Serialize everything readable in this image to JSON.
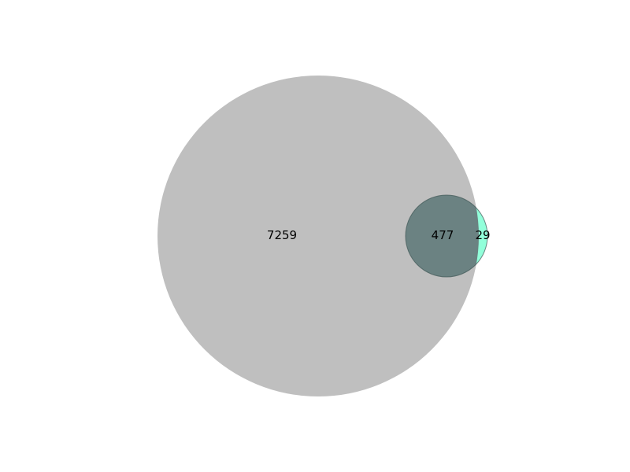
{
  "diagram": {
    "type": "venn2",
    "sets": [
      {
        "id": "A",
        "size": 7736,
        "color": "#bfbfbf"
      },
      {
        "id": "B",
        "size": 506,
        "color": "#7fffd4"
      }
    ],
    "overlap_color": "#6b8282",
    "regions": {
      "only_a": {
        "label": "7259",
        "value": 7259
      },
      "both": {
        "label": "477",
        "value": 477
      },
      "only_b": {
        "label": "29",
        "value": 29
      }
    }
  }
}
